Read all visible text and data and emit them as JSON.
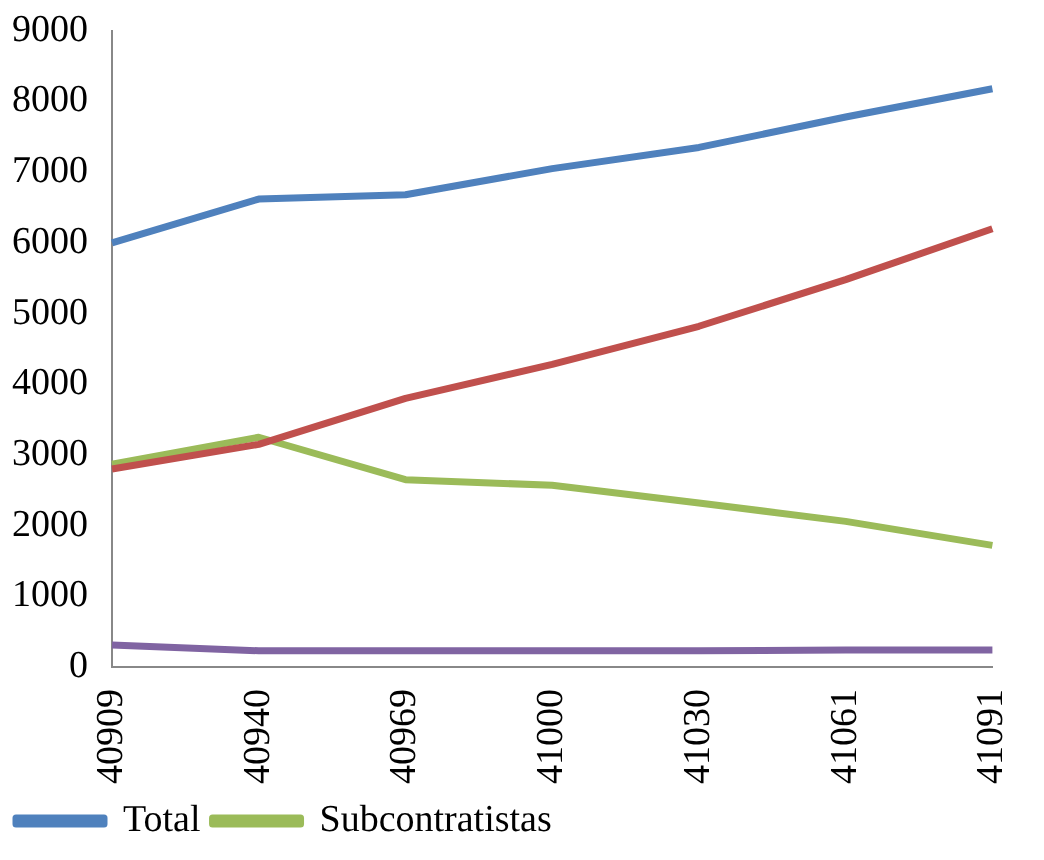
{
  "chart_data": {
    "type": "line",
    "categories": [
      "40909",
      "40940",
      "40969",
      "41000",
      "41030",
      "41061",
      "41091"
    ],
    "series": [
      {
        "name": "Total",
        "color": "#4f81bd",
        "values": [
          6000,
          6620,
          6680,
          7050,
          7350,
          7780,
          8180
        ]
      },
      {
        "color": "#c0504d",
        "values": [
          2800,
          3150,
          3800,
          4280,
          4820,
          5480,
          6200
        ]
      },
      {
        "name": "Subcontratistas",
        "color": "#9bbb59",
        "values": [
          2870,
          3250,
          2650,
          2570,
          2320,
          2060,
          1720
        ]
      },
      {
        "color": "#8064a2",
        "values": [
          310,
          230,
          230,
          230,
          230,
          240,
          240
        ]
      }
    ],
    "ylim": [
      0,
      9000
    ],
    "yticks": [
      0,
      1000,
      2000,
      3000,
      4000,
      5000,
      6000,
      7000,
      8000,
      9000
    ],
    "grid": false,
    "legend": "bottom",
    "marker": "none",
    "line_style": "solid"
  }
}
